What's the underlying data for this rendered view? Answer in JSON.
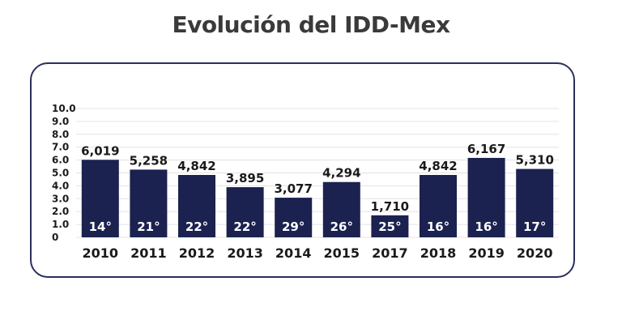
{
  "title": "Evolución del IDD-Mex",
  "chart_data": {
    "type": "bar",
    "categories": [
      "2010",
      "2011",
      "2012",
      "2013",
      "2014",
      "2015",
      "2017",
      "2018",
      "2019",
      "2020"
    ],
    "values": [
      6.019,
      5.258,
      4.842,
      3.895,
      3.077,
      4.294,
      1.71,
      4.842,
      6.167,
      5.31
    ],
    "value_labels": [
      "6,019",
      "5,258",
      "4,842",
      "3,895",
      "3,077",
      "4,294",
      "1,710",
      "4,842",
      "6,167",
      "5,310"
    ],
    "rank_labels": [
      "14°",
      "21°",
      "22°",
      "22°",
      "29°",
      "26°",
      "25°",
      "16°",
      "16°",
      "17°"
    ],
    "ylim": [
      0,
      10
    ],
    "yticks": [
      "0",
      "1.0",
      "2.0",
      "3.0",
      "4.0",
      "5.0",
      "6.0",
      "7.0",
      "8.0",
      "9.0",
      "10.0"
    ],
    "title": "Evolución del IDD-Mex",
    "xlabel": "",
    "ylabel": "",
    "grid": true,
    "colors": {
      "bar": "#1b2250",
      "grid": "#e3e3e3",
      "border": "#2a2f5c"
    }
  }
}
